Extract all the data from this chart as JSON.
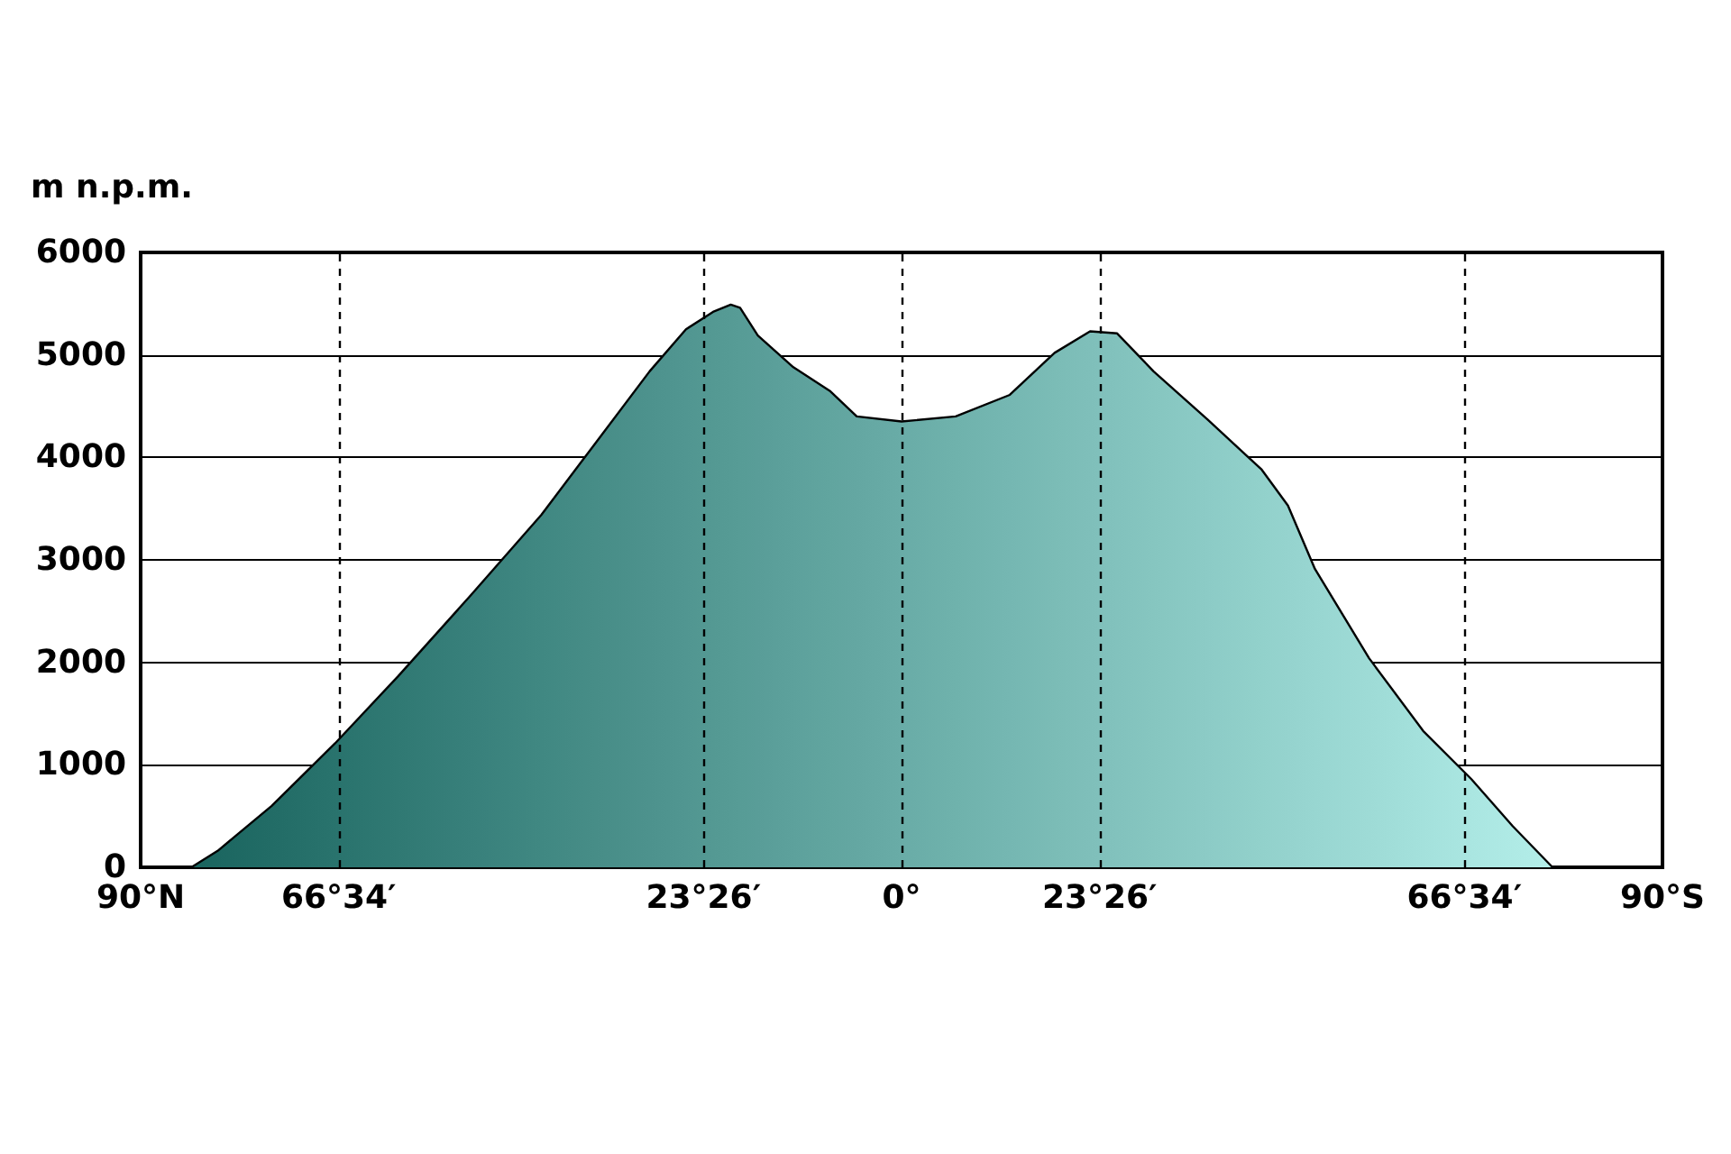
{
  "chart_data": {
    "type": "area",
    "ylabel": "m n.p.m.",
    "x": [
      -90,
      -84,
      -80.9,
      -74.5,
      -67,
      -59.6,
      -51,
      -42.6,
      -36.2,
      -29.8,
      -25.5,
      -22.3,
      -20.2,
      -19.1,
      -17,
      -12.8,
      -8.5,
      -5.3,
      0,
      6.4,
      12.8,
      18.1,
      22.3,
      25.5,
      29.8,
      36.2,
      42.6,
      45.7,
      48.9,
      55.3,
      61.7,
      67.4,
      72.3,
      77
    ],
    "series": [
      {
        "colors": [
          "#135f59",
          "#19645e",
          "#1c6761",
          "#226c66",
          "#29736d",
          "#307973",
          "#38807b",
          "#408882",
          "#478d87",
          "#4d928d",
          "#519691",
          "#549993",
          "#569b95",
          "#579c96",
          "#599d98",
          "#5da19c",
          "#61a59f",
          "#64a7a2",
          "#69aca7",
          "#6fb2ac",
          "#75b7b2",
          "#7bbcb6",
          "#7fbfba",
          "#82c2bd",
          "#86c6c0",
          "#8ccbc6",
          "#92d1cb",
          "#95d3ce",
          "#98d6d1",
          "#9edbd6",
          "#a4e1dc",
          "#aae6e1",
          "#afeae5",
          "#b3eee9"
        ],
        "values": [
          0,
          0,
          160,
          600,
          1210,
          1860,
          2650,
          3440,
          4140,
          4840,
          5250,
          5420,
          5490,
          5460,
          5190,
          4880,
          4650,
          4400,
          4350,
          4400,
          4610,
          5020,
          5230,
          5210,
          4840,
          4370,
          3880,
          3530,
          2910,
          2040,
          1330,
          860,
          400,
          0
        ]
      }
    ],
    "xlim": [
      -90,
      90
    ],
    "xticks": [
      {
        "value": -90,
        "label": "90°N"
      },
      {
        "value": -66.57,
        "label": "66°34′"
      },
      {
        "value": -23.43,
        "label": "23°26′"
      },
      {
        "value": 0,
        "label": "0°"
      },
      {
        "value": 23.43,
        "label": "23°26′"
      },
      {
        "value": 66.57,
        "label": "66°34′"
      },
      {
        "value": 90,
        "label": "90°S"
      }
    ],
    "ylim": [
      0,
      6000
    ],
    "yticks": [
      0,
      1000,
      2000,
      3000,
      4000,
      5000,
      6000
    ],
    "grid": "y",
    "marker": "none",
    "ref_lines": [
      {
        "axis": "x",
        "value": -66.57,
        "line_style": "dashed"
      },
      {
        "axis": "x",
        "value": -23.43,
        "line_style": "dashed"
      },
      {
        "axis": "x",
        "value": 0,
        "line_style": "dashed"
      },
      {
        "axis": "x",
        "value": 23.43,
        "line_style": "dashed"
      },
      {
        "axis": "x",
        "value": 66.57,
        "line_style": "dashed"
      }
    ]
  }
}
